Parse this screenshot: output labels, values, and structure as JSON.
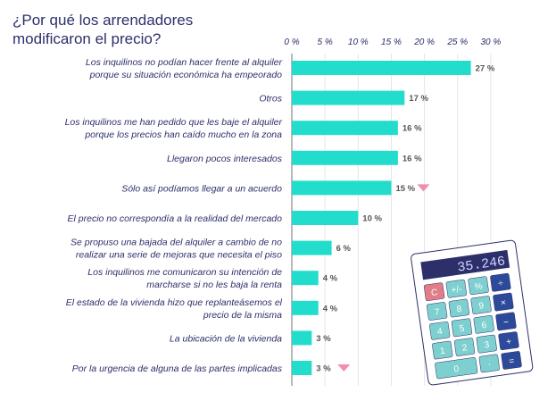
{
  "chart_data": {
    "type": "bar",
    "orientation": "horizontal",
    "title": "¿Por qué los arrendadores modificaron el precio?",
    "title_lines": [
      "¿Por qué los arrendadores",
      "modificaron el precio?"
    ],
    "categories": [
      [
        "Los inquilinos no podían hacer frente al alquiler",
        "porque su situación económica ha empeorado"
      ],
      [
        "Otros"
      ],
      [
        "Los inquilinos me han pedido que les baje el alquiler",
        "porque los precios han caído mucho en la zona"
      ],
      [
        "Llegaron pocos interesados"
      ],
      [
        "Sólo así podíamos llegar a un acuerdo"
      ],
      [
        "El precio no correspondía a la realidad del mercado"
      ],
      [
        "Se propuso una bajada del alquiler a cambio de no",
        "realizar una serie de mejoras que necesita el piso"
      ],
      [
        "Los inquilinos me comunicaron su intención de",
        "marcharse si no les baja la renta"
      ],
      [
        "El estado de la vivienda hizo que replanteásemos el",
        "precio de la misma"
      ],
      [
        "La ubicación de la vivienda"
      ],
      [
        "Por la urgencia de alguna de las partes implicadas"
      ]
    ],
    "values": [
      27,
      17,
      16,
      16,
      15,
      10,
      6,
      4,
      4,
      3,
      3
    ],
    "value_labels": [
      "27 %",
      "17 %",
      "16 %",
      "16 %",
      "15 %",
      "10 %",
      "6 %",
      "4 %",
      "4 %",
      "3 %",
      "3 %"
    ],
    "down_markers": [
      false,
      false,
      false,
      false,
      true,
      false,
      false,
      false,
      false,
      false,
      true
    ],
    "xlim": [
      0,
      30
    ],
    "ticks": [
      "0 %",
      "5 %",
      "10 %",
      "15 %",
      "20 %",
      "25 %",
      "30 %"
    ],
    "tick_values": [
      0,
      5,
      10,
      15,
      20,
      25,
      30
    ],
    "grid": true,
    "colors": {
      "bar": "#22ddcc",
      "marker": "#f28cb1",
      "text": "#2d2f6b",
      "grid": "#e6e6e6"
    }
  },
  "illustration": {
    "calculator_display": "35.246",
    "keys": [
      "C",
      "+/-",
      "%",
      "÷",
      "7",
      "8",
      "9",
      "×",
      "4",
      "5",
      "6",
      "−",
      "1",
      "2",
      "3",
      "+",
      "0",
      "·",
      "="
    ]
  }
}
